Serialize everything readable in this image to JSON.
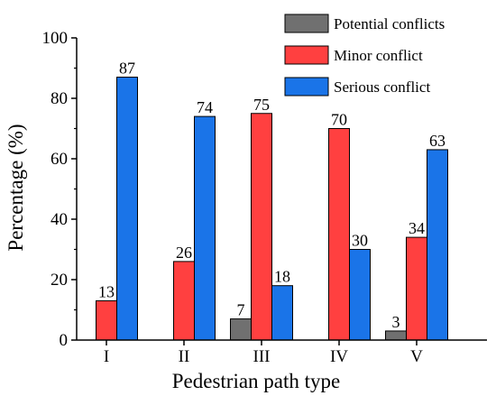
{
  "chart_data": {
    "type": "bar",
    "title": "",
    "xlabel": "Pedestrian path type",
    "ylabel": "Percentage (%)",
    "categories": [
      "I",
      "II",
      "III",
      "IV",
      "V"
    ],
    "ylim": [
      0,
      100
    ],
    "yticks": [
      0,
      20,
      40,
      60,
      80,
      100
    ],
    "grid": false,
    "legend_position": "top-right",
    "series": [
      {
        "name": "Potential conflicts",
        "color": "#707070",
        "values": [
          null,
          null,
          7,
          null,
          3
        ]
      },
      {
        "name": "Minor conflict",
        "color": "#ff4040",
        "values": [
          13,
          26,
          75,
          70,
          34
        ]
      },
      {
        "name": "Serious conflict",
        "color": "#1a74e8",
        "values": [
          87,
          74,
          18,
          30,
          63
        ]
      }
    ]
  }
}
